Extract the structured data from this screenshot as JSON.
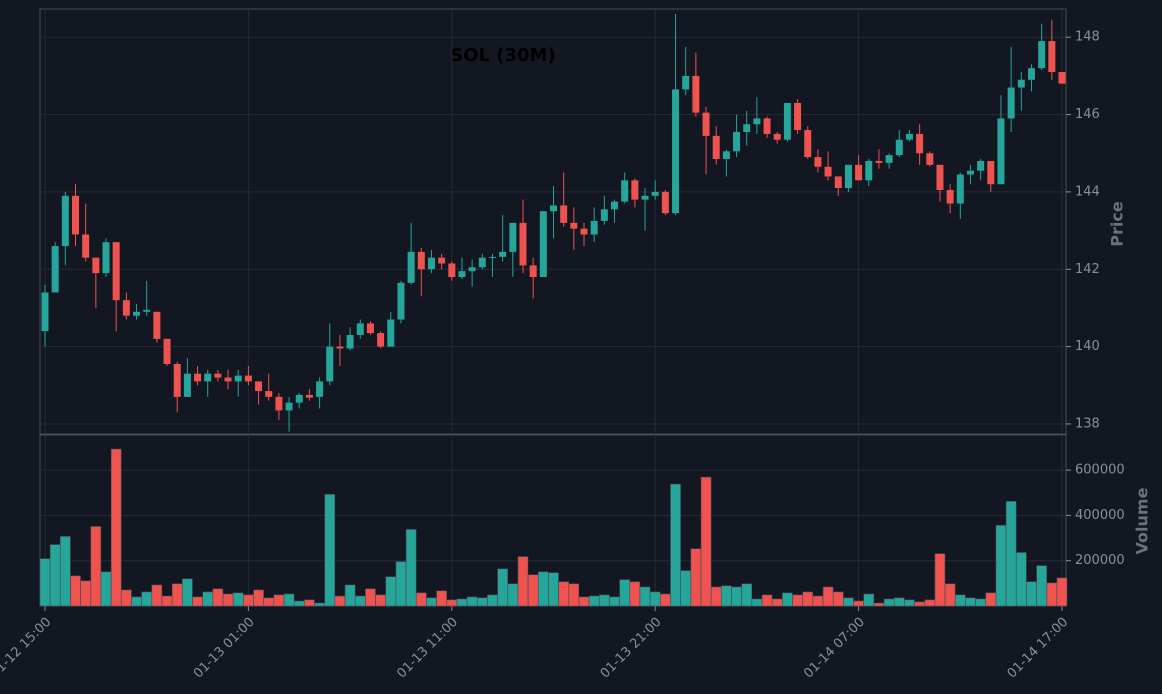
{
  "chart_data": {
    "type": "candlestick",
    "title": "SOL (30M)",
    "ylabel": "Price",
    "y2label": "Volume",
    "categories": [
      "01-12 15:00",
      null,
      null,
      null,
      null,
      null,
      null,
      null,
      null,
      null,
      null,
      null,
      null,
      null,
      null,
      null,
      null,
      null,
      null,
      null,
      "01-13 01:00",
      null,
      null,
      null,
      null,
      null,
      null,
      null,
      null,
      null,
      null,
      null,
      null,
      null,
      null,
      null,
      null,
      null,
      null,
      null,
      "01-13 11:00",
      null,
      null,
      null,
      null,
      null,
      null,
      null,
      null,
      null,
      null,
      null,
      null,
      null,
      null,
      null,
      null,
      null,
      null,
      null,
      "01-13 21:00",
      null,
      null,
      null,
      null,
      null,
      null,
      null,
      null,
      null,
      null,
      null,
      null,
      null,
      null,
      null,
      null,
      null,
      null,
      null,
      "01-14 07:00",
      null,
      null,
      null,
      null,
      null,
      null,
      null,
      null,
      null,
      null,
      null,
      null,
      null,
      null,
      null,
      null,
      null,
      null,
      null,
      "01-14 17:00"
    ],
    "up_color": "#26a69a",
    "down_color": "#ef5350",
    "open": [
      140.4,
      141.4,
      142.6,
      143.9,
      142.9,
      142.3,
      141.9,
      142.7,
      141.2,
      140.8,
      140.9,
      140.9,
      140.2,
      139.55,
      138.7,
      139.3,
      139.1,
      139.3,
      139.2,
      139.1,
      139.25,
      139.1,
      138.85,
      138.7,
      138.35,
      138.55,
      138.75,
      138.7,
      139.1,
      140.0,
      139.95,
      140.3,
      140.6,
      140.35,
      140.0,
      140.7,
      141.65,
      142.45,
      142.0,
      142.3,
      142.15,
      141.8,
      141.95,
      142.05,
      142.3,
      142.32,
      142.45,
      143.2,
      142.1,
      141.8,
      143.5,
      143.65,
      143.2,
      143.05,
      142.9,
      143.25,
      143.55,
      143.75,
      144.3,
      143.8,
      143.9,
      144.0,
      143.45,
      146.65,
      147.0,
      146.05,
      145.45,
      144.85,
      145.05,
      145.55,
      145.75,
      145.9,
      145.5,
      145.35,
      146.3,
      145.6,
      144.9,
      144.65,
      144.4,
      144.1,
      144.7,
      144.3,
      144.8,
      144.75,
      144.95,
      145.35,
      145.5,
      145.0,
      144.7,
      144.05,
      143.7,
      144.45,
      144.55,
      144.8,
      144.2,
      145.9,
      146.7,
      146.9,
      147.2,
      147.9,
      147.1
    ],
    "high": [
      141.6,
      142.7,
      144.0,
      144.2,
      143.7,
      142.3,
      142.8,
      142.7,
      141.4,
      141.1,
      141.7,
      140.9,
      140.2,
      139.6,
      139.7,
      139.5,
      139.4,
      139.4,
      139.4,
      139.4,
      139.5,
      139.1,
      139.3,
      138.8,
      138.7,
      138.8,
      138.9,
      139.2,
      140.6,
      140.3,
      140.5,
      140.7,
      140.65,
      140.4,
      140.9,
      141.7,
      143.2,
      142.55,
      142.5,
      142.4,
      142.2,
      142.3,
      142.25,
      142.4,
      142.4,
      143.4,
      143.2,
      143.8,
      142.3,
      143.5,
      144.15,
      144.5,
      143.6,
      143.2,
      143.6,
      143.9,
      143.8,
      144.5,
      144.35,
      144.1,
      144.3,
      144.05,
      148.6,
      147.75,
      147.6,
      146.2,
      145.7,
      145.1,
      146.0,
      146.1,
      146.45,
      145.95,
      145.55,
      146.3,
      146.4,
      145.7,
      145.1,
      145.05,
      144.4,
      144.7,
      144.95,
      144.85,
      145.1,
      145.0,
      145.6,
      145.6,
      145.75,
      145.05,
      144.7,
      144.2,
      144.5,
      144.7,
      144.85,
      144.8,
      146.5,
      147.75,
      147.1,
      147.3,
      148.35,
      148.45,
      147.1
    ],
    "low": [
      140.0,
      141.4,
      142.1,
      142.6,
      142.2,
      141.0,
      141.8,
      140.4,
      140.7,
      140.7,
      140.8,
      140.1,
      139.5,
      138.3,
      138.7,
      139.0,
      138.7,
      139.1,
      138.9,
      138.7,
      139.0,
      138.5,
      138.6,
      138.1,
      137.8,
      138.4,
      138.6,
      138.4,
      139.0,
      139.5,
      139.9,
      140.2,
      140.3,
      139.95,
      140.0,
      140.6,
      141.6,
      141.3,
      141.9,
      142.0,
      141.7,
      141.75,
      141.55,
      142.0,
      141.8,
      142.2,
      141.8,
      141.9,
      141.25,
      141.8,
      142.8,
      143.1,
      142.5,
      142.6,
      142.7,
      143.15,
      143.2,
      143.7,
      143.6,
      143.0,
      143.8,
      143.4,
      143.4,
      146.5,
      145.95,
      144.45,
      144.7,
      144.4,
      144.9,
      145.2,
      145.5,
      145.4,
      145.25,
      145.3,
      145.5,
      144.85,
      144.5,
      144.3,
      143.9,
      144.0,
      144.3,
      144.15,
      144.6,
      144.6,
      144.9,
      145.3,
      144.7,
      144.65,
      143.75,
      143.45,
      143.3,
      144.2,
      144.3,
      144.0,
      144.2,
      145.55,
      146.1,
      146.6,
      147.15,
      146.9,
      146.8
    ],
    "close": [
      141.4,
      142.6,
      143.9,
      142.9,
      142.3,
      141.9,
      142.7,
      141.2,
      140.8,
      140.9,
      140.95,
      140.2,
      139.55,
      138.7,
      139.3,
      139.1,
      139.3,
      139.2,
      139.1,
      139.25,
      139.1,
      138.85,
      138.7,
      138.35,
      138.55,
      138.75,
      138.68,
      139.1,
      140.0,
      139.95,
      140.3,
      140.6,
      140.35,
      140.0,
      140.7,
      141.65,
      142.45,
      142.0,
      142.3,
      142.15,
      141.8,
      141.95,
      142.05,
      142.3,
      142.32,
      142.45,
      143.2,
      142.1,
      141.8,
      143.5,
      143.65,
      143.2,
      143.05,
      142.9,
      143.25,
      143.55,
      143.75,
      144.3,
      143.8,
      143.9,
      144.0,
      143.45,
      146.65,
      147.0,
      146.05,
      145.45,
      144.85,
      145.05,
      145.55,
      145.75,
      145.9,
      145.5,
      145.35,
      146.3,
      145.6,
      144.9,
      144.65,
      144.4,
      144.1,
      144.7,
      144.3,
      144.8,
      144.75,
      144.95,
      145.35,
      145.5,
      145.0,
      144.7,
      144.05,
      143.7,
      144.45,
      144.55,
      144.8,
      144.2,
      145.9,
      146.7,
      146.9,
      147.2,
      147.9,
      147.1,
      146.8
    ],
    "volume": [
      209000,
      271000,
      307000,
      133000,
      111000,
      351000,
      151000,
      693000,
      71000,
      40000,
      62000,
      93000,
      44000,
      98000,
      120000,
      40000,
      62000,
      76000,
      53000,
      58000,
      49000,
      71000,
      36000,
      49000,
      53000,
      22000,
      27000,
      13000,
      493000,
      44000,
      93000,
      44000,
      76000,
      49000,
      129000,
      196000,
      338000,
      58000,
      36000,
      67000,
      27000,
      31000,
      40000,
      36000,
      49000,
      164000,
      98000,
      218000,
      138000,
      151000,
      147000,
      107000,
      98000,
      40000,
      44000,
      49000,
      40000,
      116000,
      107000,
      84000,
      62000,
      53000,
      538000,
      156000,
      253000,
      569000,
      84000,
      89000,
      84000,
      98000,
      31000,
      49000,
      31000,
      58000,
      49000,
      62000,
      44000,
      84000,
      62000,
      36000,
      22000,
      53000,
      13000,
      31000,
      36000,
      27000,
      18000,
      27000,
      231000,
      98000,
      49000,
      36000,
      31000,
      58000,
      356000,
      462000,
      236000,
      107000,
      178000,
      102000,
      124000
    ],
    "ylim": [
      137.74,
      148.73
    ],
    "yticks": [
      138,
      140,
      142,
      144,
      146,
      148
    ],
    "y2lim": [
      0,
      755000
    ],
    "y2ticks": [
      200000,
      400000,
      600000
    ],
    "grid": true
  }
}
